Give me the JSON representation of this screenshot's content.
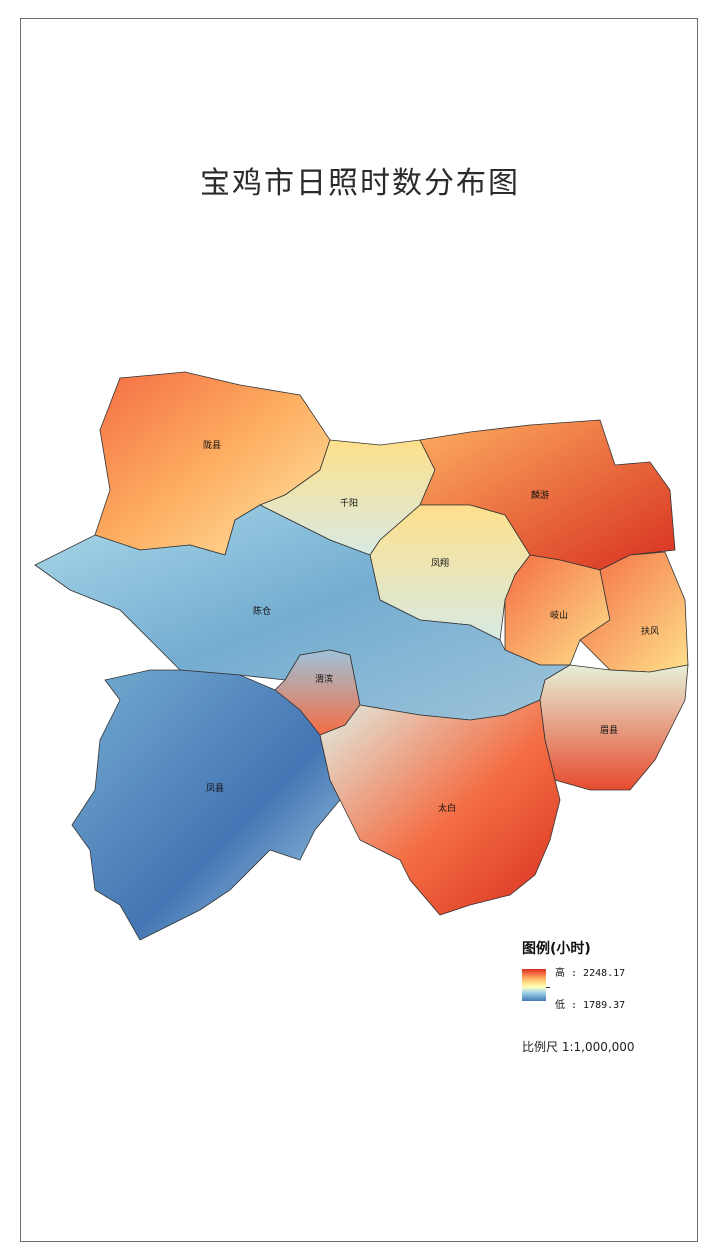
{
  "map": {
    "title": "宝鸡市日照时数分布图",
    "counties": [
      "陇县",
      "千阳",
      "麟游",
      "凤翔",
      "陈仓",
      "岐山",
      "扶风",
      "渭滨",
      "眉县",
      "凤县",
      "太白"
    ]
  },
  "legend": {
    "title": "图例(小时)",
    "high_label": "高 : 2248.17",
    "low_label": "低 : 1789.37",
    "high_value": 2248.17,
    "low_value": 1789.37,
    "colors": [
      "#d7301f",
      "#f46d43",
      "#fdae61",
      "#fee08b",
      "#ffffbf",
      "#abd9e9",
      "#74add1",
      "#4575b4"
    ]
  },
  "scale": {
    "text": "比例尺 1:1,000,000"
  }
}
